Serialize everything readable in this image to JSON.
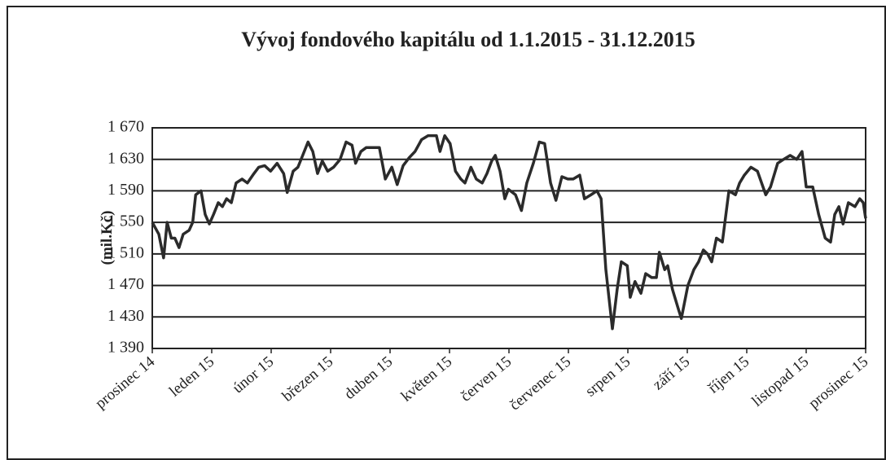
{
  "chart_data": {
    "type": "line",
    "title": "Vývoj fondového kapitálu od 1.1.2015 - 31.12.2015",
    "y_label": "(mil.Kč)",
    "xlim": [
      0,
      12
    ],
    "xticks": [
      {
        "value": 0,
        "label": "prosinec 14"
      },
      {
        "value": 1,
        "label": "leden 15"
      },
      {
        "value": 2,
        "label": "únor 15"
      },
      {
        "value": 3,
        "label": "březen 15"
      },
      {
        "value": 4,
        "label": "duben 15"
      },
      {
        "value": 5,
        "label": "květen 15"
      },
      {
        "value": 6,
        "label": "červen 15"
      },
      {
        "value": 7,
        "label": "červenec 15"
      },
      {
        "value": 8,
        "label": "srpen 15"
      },
      {
        "value": 9,
        "label": "září 15"
      },
      {
        "value": 10,
        "label": "říjen 15"
      },
      {
        "value": 11,
        "label": "listopad 15"
      },
      {
        "value": 12,
        "label": "prosinec 15"
      }
    ],
    "ylim": [
      1390,
      1670
    ],
    "yticks": [
      {
        "value": 1390,
        "label": "1 390"
      },
      {
        "value": 1430,
        "label": "1 430"
      },
      {
        "value": 1470,
        "label": "1 470"
      },
      {
        "value": 1510,
        "label": "1 510"
      },
      {
        "value": 1550,
        "label": "1 550"
      },
      {
        "value": 1590,
        "label": "1 590"
      },
      {
        "value": 1630,
        "label": "1 630"
      },
      {
        "value": 1670,
        "label": "1 670"
      }
    ],
    "grid": true,
    "x": [
      0,
      0.11,
      0.19,
      0.25,
      0.32,
      0.38,
      0.45,
      0.52,
      0.62,
      0.68,
      0.73,
      0.82,
      0.89,
      0.96,
      1.03,
      1.11,
      1.18,
      1.25,
      1.33,
      1.41,
      1.51,
      1.6,
      1.71,
      1.79,
      1.89,
      1.99,
      2.1,
      2.21,
      2.27,
      2.37,
      2.45,
      2.53,
      2.62,
      2.7,
      2.78,
      2.86,
      2.95,
      3.05,
      3.16,
      3.26,
      3.36,
      3.42,
      3.51,
      3.6,
      3.82,
      3.92,
      4.03,
      4.12,
      4.22,
      4.32,
      4.42,
      4.53,
      4.64,
      4.78,
      4.84,
      4.92,
      5.01,
      5.1,
      5.19,
      5.26,
      5.36,
      5.45,
      5.55,
      5.63,
      5.71,
      5.77,
      5.85,
      5.93,
      5.99,
      6.11,
      6.21,
      6.3,
      6.41,
      6.51,
      6.6,
      6.7,
      6.79,
      6.89,
      6.99,
      7.08,
      7.19,
      7.27,
      7.38,
      7.48,
      7.55,
      7.63,
      7.74,
      7.82,
      7.89,
      7.99,
      8.04,
      8.12,
      8.22,
      8.3,
      8.4,
      8.48,
      8.53,
      8.62,
      8.67,
      8.75,
      8.85,
      8.9,
      9.01,
      9.11,
      9.19,
      9.27,
      9.34,
      9.41,
      9.49,
      9.59,
      9.7,
      9.81,
      9.88,
      9.96,
      10.07,
      10.18,
      10.32,
      10.4,
      10.52,
      10.62,
      10.73,
      10.84,
      10.93,
      11,
      11.11,
      11.21,
      11.32,
      11.41,
      11.48,
      11.55,
      11.62,
      11.71,
      11.82,
      11.9,
      11.96,
      12
    ],
    "series": [
      {
        "color": "#2b2b2b",
        "values": [
          1550,
          1535,
          1505,
          1550,
          1530,
          1530,
          1518,
          1535,
          1540,
          1550,
          1585,
          1590,
          1560,
          1548,
          1560,
          1575,
          1570,
          1580,
          1575,
          1600,
          1605,
          1600,
          1612,
          1620,
          1622,
          1615,
          1625,
          1612,
          1588,
          1615,
          1620,
          1635,
          1652,
          1640,
          1612,
          1628,
          1615,
          1620,
          1630,
          1652,
          1648,
          1625,
          1640,
          1645,
          1645,
          1605,
          1620,
          1598,
          1622,
          1632,
          1640,
          1655,
          1660,
          1660,
          1640,
          1660,
          1650,
          1615,
          1605,
          1600,
          1620,
          1605,
          1600,
          1612,
          1628,
          1635,
          1615,
          1580,
          1592,
          1585,
          1565,
          1600,
          1625,
          1652,
          1650,
          1600,
          1578,
          1608,
          1605,
          1605,
          1610,
          1580,
          1585,
          1590,
          1580,
          1490,
          1415,
          1465,
          1500,
          1495,
          1455,
          1475,
          1460,
          1485,
          1480,
          1480,
          1512,
          1490,
          1495,
          1465,
          1440,
          1428,
          1470,
          1490,
          1500,
          1515,
          1510,
          1500,
          1530,
          1525,
          1590,
          1585,
          1600,
          1610,
          1620,
          1615,
          1585,
          1595,
          1625,
          1630,
          1635,
          1630,
          1640,
          1595,
          1595,
          1560,
          1530,
          1525,
          1560,
          1570,
          1548,
          1575,
          1570,
          1580,
          1575,
          1555
        ]
      }
    ]
  }
}
